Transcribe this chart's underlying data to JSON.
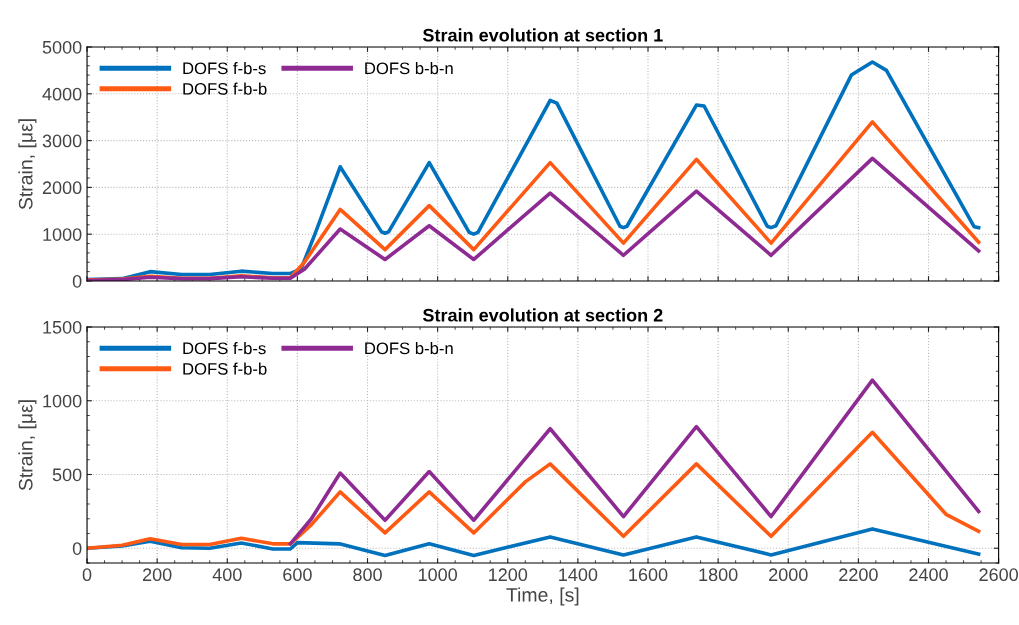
{
  "chart_data": [
    {
      "type": "line",
      "title": "Strain evolution at section 1",
      "ylabel": "Strain, [με]",
      "xlim": [
        0,
        2600
      ],
      "xticks": [
        0,
        200,
        400,
        600,
        800,
        1000,
        1200,
        1400,
        1600,
        1800,
        2000,
        2200,
        2400,
        2600
      ],
      "ylim": [
        0,
        5000
      ],
      "yticks": [
        0,
        1000,
        2000,
        3000,
        4000,
        5000
      ],
      "grid": true,
      "legend": "top left",
      "tick_labels": "y",
      "series": [
        {
          "name": "DOFS f-b-s",
          "color": "#0072bd",
          "x": [
            0,
            100,
            180,
            270,
            350,
            440,
            530,
            580,
            610,
            650,
            722,
            840,
            850,
            860,
            976,
            1090,
            1103,
            1115,
            1321,
            1340,
            1520,
            1530,
            1540,
            1738,
            1760,
            1940,
            1951,
            1965,
            2180,
            2240,
            2280,
            2530,
            2543
          ],
          "values": [
            30,
            50,
            200,
            140,
            140,
            210,
            160,
            160,
            250,
            1000,
            2440,
            1050,
            1020,
            1050,
            2530,
            1040,
            1000,
            1040,
            3860,
            3800,
            1170,
            1140,
            1170,
            3760,
            3740,
            1170,
            1140,
            1180,
            4400,
            4680,
            4500,
            1160,
            1140
          ]
        },
        {
          "name": "DOFS f-b-b",
          "color": "#ff5a14",
          "x": [
            0,
            100,
            180,
            270,
            350,
            440,
            530,
            580,
            620,
            722,
            850,
            976,
            1103,
            1321,
            1530,
            1738,
            1951,
            2240,
            2543
          ],
          "values": [
            20,
            40,
            100,
            60,
            60,
            110,
            70,
            70,
            400,
            1530,
            670,
            1610,
            670,
            2530,
            810,
            2600,
            810,
            3400,
            830
          ]
        },
        {
          "name": "DOFS b-b-n",
          "color": "#8e2b93",
          "x": [
            0,
            100,
            180,
            270,
            350,
            440,
            530,
            580,
            620,
            722,
            850,
            976,
            1103,
            1321,
            1530,
            1738,
            1951,
            2240,
            2543
          ],
          "values": [
            10,
            30,
            80,
            50,
            50,
            90,
            60,
            60,
            250,
            1110,
            460,
            1180,
            460,
            1880,
            550,
            1920,
            550,
            2620,
            640
          ]
        }
      ]
    },
    {
      "type": "line",
      "title": "Strain evolution at section 2",
      "xlabel": "Time, [s]",
      "ylabel": "Strain, [με]",
      "xlim": [
        0,
        2600
      ],
      "xticks": [
        0,
        200,
        400,
        600,
        800,
        1000,
        1200,
        1400,
        1600,
        1800,
        2000,
        2200,
        2400,
        2600
      ],
      "ylim": [
        -100,
        1500
      ],
      "yticks": [
        0,
        500,
        1000,
        1500
      ],
      "grid": true,
      "legend": "top left",
      "series": [
        {
          "name": "DOFS f-b-s",
          "color": "#0072bd",
          "x": [
            0,
            100,
            180,
            270,
            350,
            440,
            530,
            580,
            600,
            720,
            850,
            976,
            1103,
            1321,
            1530,
            1738,
            1951,
            2240,
            2543
          ],
          "values": [
            0,
            15,
            47,
            3,
            0,
            36,
            -5,
            -5,
            38,
            30,
            -49,
            30,
            -49,
            77,
            -45,
            77,
            -45,
            131,
            -40
          ]
        },
        {
          "name": "DOFS f-b-b",
          "color": "#ff5a14",
          "x": [
            0,
            100,
            180,
            270,
            350,
            440,
            530,
            580,
            640,
            722,
            850,
            976,
            1103,
            1250,
            1321,
            1530,
            1738,
            1951,
            2240,
            2450,
            2543
          ],
          "values": [
            0,
            20,
            64,
            25,
            25,
            68,
            30,
            30,
            160,
            382,
            104,
            382,
            104,
            450,
            572,
            81,
            572,
            81,
            786,
            230,
            115
          ]
        },
        {
          "name": "DOFS b-b-n",
          "color": "#8e2b93",
          "x": [
            580,
            640,
            722,
            850,
            976,
            1103,
            1321,
            1530,
            1738,
            1951,
            2240,
            2543
          ],
          "values": [
            30,
            200,
            510,
            190,
            520,
            190,
            810,
            215,
            825,
            215,
            1140,
            250
          ]
        }
      ]
    }
  ]
}
